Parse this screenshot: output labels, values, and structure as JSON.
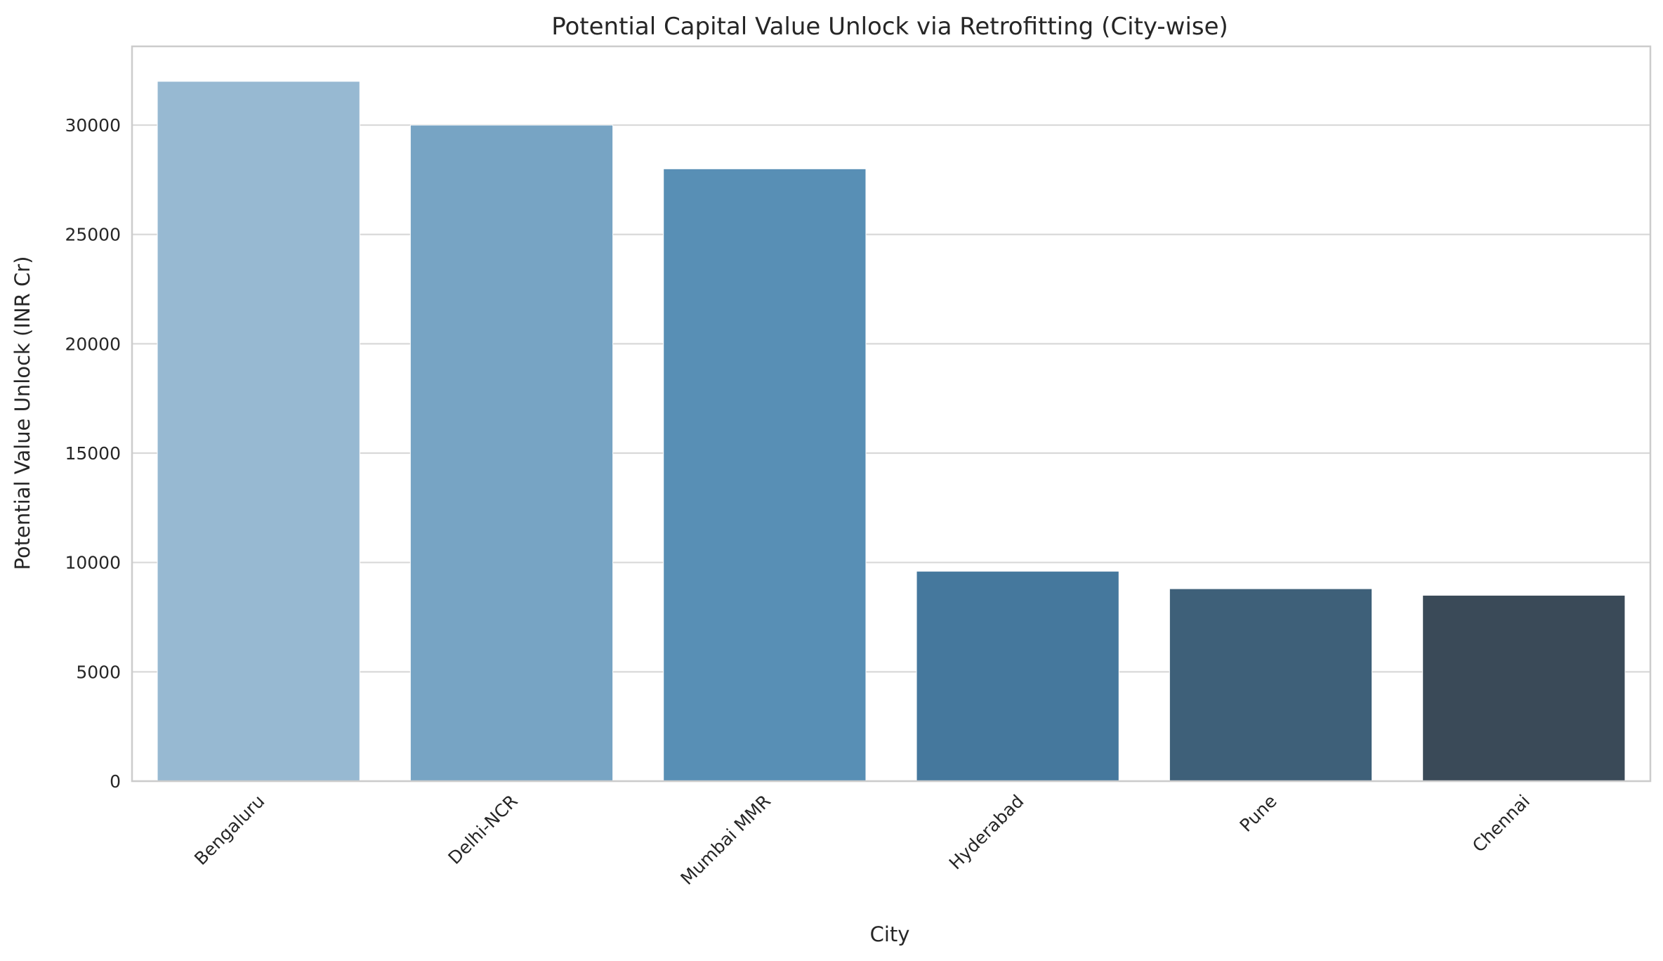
{
  "chart_data": {
    "type": "bar",
    "title": "Potential Capital Value Unlock via Retrofitting (City-wise)",
    "xlabel": "City",
    "ylabel": "Potential Value Unlock (INR Cr)",
    "categories": [
      "Bengaluru",
      "Delhi-NCR",
      "Mumbai MMR",
      "Hyderabad",
      "Pune",
      "Chennai"
    ],
    "values": [
      32000,
      30000,
      28000,
      9600,
      8800,
      8500
    ],
    "colors": [
      "#97b9d2",
      "#77a4c4",
      "#588fb5",
      "#45789d",
      "#3e6079",
      "#3a4a58"
    ],
    "ylim": [
      0,
      33600
    ],
    "yticks": [
      0,
      5000,
      10000,
      15000,
      20000,
      25000,
      30000
    ],
    "grid": true,
    "gridColor": "#d9d9d9",
    "legend": "none"
  }
}
